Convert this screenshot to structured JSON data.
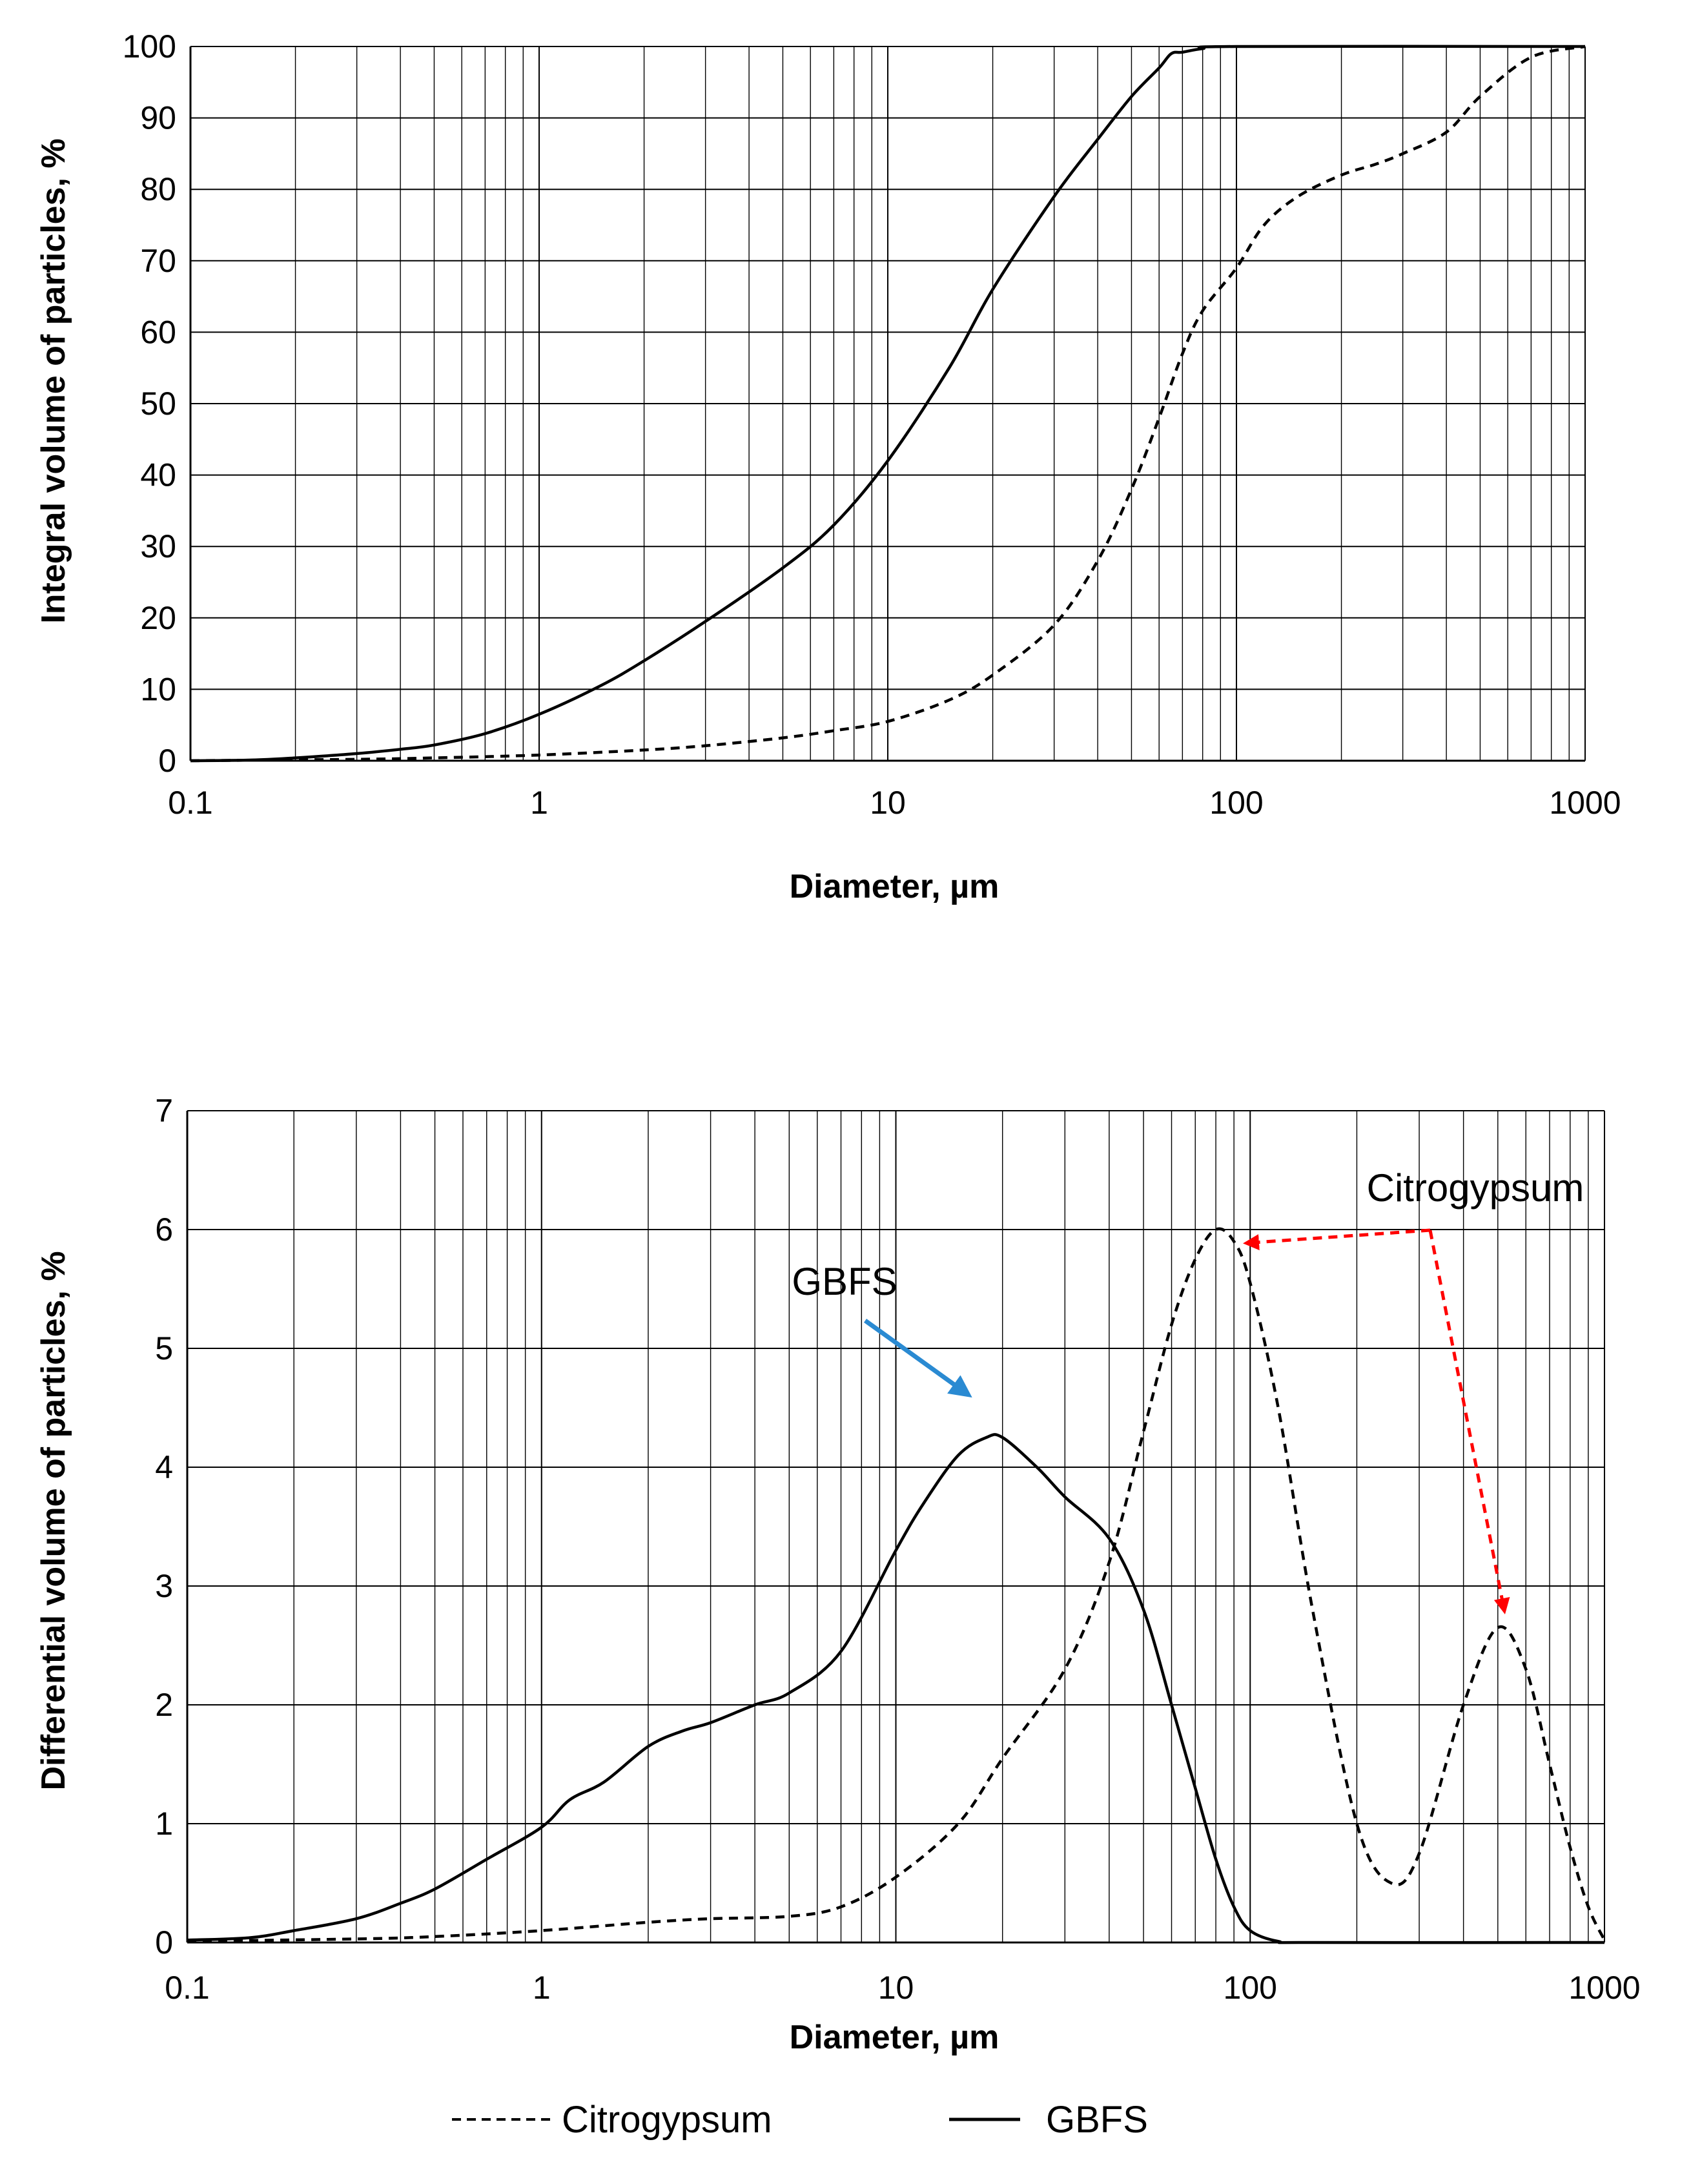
{
  "colors": {
    "line": "#000000",
    "grid": "#000000",
    "gbfs_arrow": "#2a8ad2",
    "citrogypsum_arrow": "#ff0000"
  },
  "legend": [
    {
      "label": "Citrogypsum",
      "style": "dashed"
    },
    {
      "label": "GBFS",
      "style": "solid"
    }
  ],
  "chart_data": [
    {
      "type": "line",
      "title": "",
      "xlabel": "Diameter, µm",
      "ylabel": "Integral volume of particles, %",
      "xscale": "log",
      "xlim": [
        0.1,
        1000
      ],
      "ylim": [
        0,
        100
      ],
      "xticks": [
        0.1,
        1,
        10,
        100,
        1000
      ],
      "xtick_labels": [
        "0.1",
        "1",
        "10",
        "100",
        "1000"
      ],
      "yticks": [
        0,
        10,
        20,
        30,
        40,
        50,
        60,
        70,
        80,
        90,
        100
      ],
      "ytick_labels": [
        "0",
        "10",
        "20",
        "30",
        "40",
        "50",
        "60",
        "70",
        "80",
        "90",
        "100"
      ],
      "grid": true,
      "series": [
        {
          "name": "GBFS",
          "style": "solid",
          "points": [
            [
              0.1,
              0
            ],
            [
              0.15,
              0.1
            ],
            [
              0.2,
              0.4
            ],
            [
              0.3,
              1.0
            ],
            [
              0.4,
              1.6
            ],
            [
              0.5,
              2.2
            ],
            [
              0.7,
              3.8
            ],
            [
              1,
              6.5
            ],
            [
              1.5,
              10.5
            ],
            [
              2,
              14
            ],
            [
              3,
              19.5
            ],
            [
              5,
              27
            ],
            [
              7,
              33
            ],
            [
              10,
              42
            ],
            [
              15,
              55
            ],
            [
              20,
              66
            ],
            [
              30,
              79
            ],
            [
              40,
              87
            ],
            [
              50,
              93
            ],
            [
              60,
              97
            ],
            [
              65,
              99
            ],
            [
              70,
              99.2
            ],
            [
              80,
              99.7
            ],
            [
              100,
              100
            ],
            [
              1000,
              100
            ]
          ]
        },
        {
          "name": "Citrogypsum",
          "style": "dashed",
          "points": [
            [
              0.1,
              0
            ],
            [
              0.3,
              0.2
            ],
            [
              0.5,
              0.4
            ],
            [
              1,
              0.8
            ],
            [
              2,
              1.5
            ],
            [
              3,
              2.1
            ],
            [
              5,
              3.2
            ],
            [
              7,
              4.2
            ],
            [
              10,
              5.5
            ],
            [
              15,
              8.5
            ],
            [
              20,
              12
            ],
            [
              30,
              19
            ],
            [
              40,
              28
            ],
            [
              50,
              38
            ],
            [
              60,
              48
            ],
            [
              70,
              57
            ],
            [
              80,
              63
            ],
            [
              100,
              69
            ],
            [
              120,
              75
            ],
            [
              150,
              79
            ],
            [
              200,
              82
            ],
            [
              250,
              83.5
            ],
            [
              300,
              85
            ],
            [
              400,
              88
            ],
            [
              500,
              93
            ],
            [
              700,
              98.5
            ],
            [
              1000,
              100
            ]
          ]
        }
      ]
    },
    {
      "type": "line",
      "title": "",
      "xlabel": "Diameter, µm",
      "ylabel": "Differential volume of particles, %",
      "xscale": "log",
      "xlim": [
        0.1,
        1000
      ],
      "ylim": [
        0,
        7
      ],
      "xticks": [
        0.1,
        1,
        10,
        100,
        1000
      ],
      "xtick_labels": [
        "0.1",
        "1",
        "10",
        "100",
        "1000"
      ],
      "yticks": [
        0,
        1,
        2,
        3,
        4,
        5,
        6,
        7
      ],
      "ytick_labels": [
        "0",
        "1",
        "2",
        "3",
        "4",
        "5",
        "6",
        "7"
      ],
      "grid": true,
      "annotations": [
        {
          "text": "GBFS",
          "target_x": 17,
          "target_y": 4.25
        },
        {
          "text": "Citrogypsum",
          "targets": [
            [
              85,
              5.9
            ],
            [
              500,
              2.75
            ]
          ]
        }
      ],
      "series": [
        {
          "name": "GBFS",
          "style": "solid",
          "points": [
            [
              0.1,
              0.02
            ],
            [
              0.15,
              0.04
            ],
            [
              0.2,
              0.1
            ],
            [
              0.3,
              0.2
            ],
            [
              0.4,
              0.33
            ],
            [
              0.5,
              0.45
            ],
            [
              0.7,
              0.7
            ],
            [
              1,
              0.97
            ],
            [
              1.2,
              1.2
            ],
            [
              1.5,
              1.35
            ],
            [
              2,
              1.65
            ],
            [
              2.5,
              1.78
            ],
            [
              3,
              1.85
            ],
            [
              4,
              2.0
            ],
            [
              5,
              2.1
            ],
            [
              7,
              2.45
            ],
            [
              10,
              3.3
            ],
            [
              12,
              3.7
            ],
            [
              15,
              4.1
            ],
            [
              18,
              4.25
            ],
            [
              20,
              4.25
            ],
            [
              25,
              4.0
            ],
            [
              30,
              3.75
            ],
            [
              40,
              3.4
            ],
            [
              50,
              2.8
            ],
            [
              60,
              2.0
            ],
            [
              70,
              1.3
            ],
            [
              80,
              0.7
            ],
            [
              90,
              0.3
            ],
            [
              100,
              0.1
            ],
            [
              120,
              0.01
            ],
            [
              150,
              0
            ],
            [
              1000,
              0
            ]
          ]
        },
        {
          "name": "Citrogypsum",
          "style": "dashed",
          "points": [
            [
              0.1,
              0.01
            ],
            [
              0.3,
              0.03
            ],
            [
              0.5,
              0.05
            ],
            [
              1,
              0.1
            ],
            [
              2,
              0.17
            ],
            [
              3,
              0.2
            ],
            [
              5,
              0.22
            ],
            [
              7,
              0.3
            ],
            [
              10,
              0.55
            ],
            [
              15,
              1.0
            ],
            [
              20,
              1.55
            ],
            [
              30,
              2.3
            ],
            [
              40,
              3.2
            ],
            [
              50,
              4.3
            ],
            [
              60,
              5.2
            ],
            [
              70,
              5.75
            ],
            [
              80,
              6.0
            ],
            [
              90,
              5.9
            ],
            [
              100,
              5.55
            ],
            [
              120,
              4.5
            ],
            [
              150,
              2.8
            ],
            [
              200,
              1.0
            ],
            [
              250,
              0.5
            ],
            [
              300,
              0.75
            ],
            [
              400,
              2.0
            ],
            [
              500,
              2.65
            ],
            [
              600,
              2.3
            ],
            [
              700,
              1.5
            ],
            [
              800,
              0.8
            ],
            [
              900,
              0.3
            ],
            [
              1000,
              0.02
            ]
          ]
        }
      ]
    }
  ]
}
